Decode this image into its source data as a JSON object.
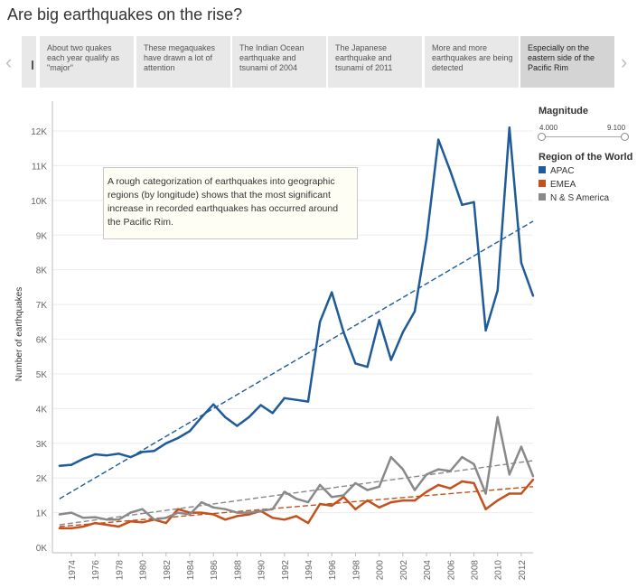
{
  "title": "Are big earthquakes on the rise?",
  "story_points": [
    {
      "label": "About two quakes each year qualify as \"major\""
    },
    {
      "label": "These megaquakes have drawn a lot of attention"
    },
    {
      "label": "The Indian Ocean earthquake and tsunami of 2004"
    },
    {
      "label": "The Japanese earthquake and tsunami of 2011"
    },
    {
      "label": "More and more earthquakes are being detected"
    },
    {
      "label": "Especially on the eastern side of the Pacific Rim"
    }
  ],
  "nav": {
    "prev": "‹",
    "next": "›"
  },
  "annotation": "A rough categorization of earthquakes into geographic regions (by longitude) shows that the most significant increase in recorded earthquakes has occurred around the Pacific Rim.",
  "filter": {
    "title": "Magnitude",
    "min_label": "4.000",
    "max_label": "9.100",
    "min": 4.0,
    "max": 9.1
  },
  "legend": {
    "title": "Region of the World",
    "items": [
      "APAC",
      "EMEA",
      "N & S America"
    ]
  },
  "colors": {
    "APAC": "#1f5b99",
    "EMEA": "#c5501c",
    "NSA": "#898989"
  },
  "chart_data": {
    "type": "line",
    "ylabel": "Number of earthquakes",
    "xlabel": "",
    "ylim": [
      0,
      12000
    ],
    "xlim": [
      1972.4,
      2013
    ],
    "y_ticks": [
      0,
      1000,
      2000,
      3000,
      4000,
      5000,
      6000,
      7000,
      8000,
      9000,
      10000,
      11000,
      12000
    ],
    "y_tick_labels": [
      "0K",
      "1K",
      "2K",
      "3K",
      "4K",
      "5K",
      "6K",
      "7K",
      "8K",
      "9K",
      "10K",
      "11K",
      "12K"
    ],
    "x_ticks": [
      1974,
      1976,
      1978,
      1980,
      1982,
      1984,
      1986,
      1988,
      1990,
      1992,
      1994,
      1996,
      1998,
      2000,
      2002,
      2004,
      2006,
      2008,
      2010,
      2012
    ],
    "x_tick_labels": [
      "1974",
      "1976",
      "1978",
      "1980",
      "1982",
      "1984",
      "1986",
      "1988",
      "1990",
      "1992",
      "1994",
      "1996",
      "1998",
      "2000",
      "2002",
      "2004",
      "2006",
      "2008",
      "2010",
      "2012"
    ],
    "years": [
      1973,
      1974,
      1975,
      1976,
      1977,
      1978,
      1979,
      1980,
      1981,
      1982,
      1983,
      1984,
      1985,
      1986,
      1987,
      1988,
      1989,
      1990,
      1991,
      1992,
      1993,
      1994,
      1995,
      1996,
      1997,
      1998,
      1999,
      2000,
      2001,
      2002,
      2003,
      2004,
      2005,
      2006,
      2007,
      2008,
      2009,
      2010,
      2011,
      2012,
      2013
    ],
    "series": [
      {
        "name": "APAC",
        "color": "#1f5b99",
        "values": [
          2350,
          2380,
          2550,
          2680,
          2650,
          2700,
          2600,
          2750,
          2780,
          3000,
          3150,
          3350,
          3750,
          4120,
          3750,
          3500,
          3750,
          4100,
          3870,
          4300,
          4250,
          4200,
          6500,
          7350,
          6200,
          5300,
          5200,
          6550,
          5400,
          6200,
          6800,
          8900,
          11750,
          10850,
          9870,
          9950,
          6250,
          7400,
          12100,
          8200,
          7250
        ],
        "trend": [
          1400,
          9400
        ]
      },
      {
        "name": "EMEA",
        "color": "#c5501c",
        "values": [
          550,
          550,
          600,
          700,
          650,
          600,
          750,
          720,
          800,
          700,
          1100,
          1000,
          1000,
          950,
          800,
          900,
          950,
          1050,
          850,
          800,
          900,
          700,
          1250,
          1200,
          1450,
          1100,
          1350,
          1150,
          1300,
          1350,
          1350,
          1600,
          1800,
          1700,
          1900,
          1850,
          1100,
          1350,
          1550,
          1550,
          1950
        ],
        "trend": [
          600,
          1750
        ]
      },
      {
        "name": "N & S America",
        "color": "#898989",
        "values": [
          950,
          1000,
          850,
          870,
          800,
          800,
          1000,
          1100,
          800,
          850,
          1000,
          950,
          1300,
          1150,
          1100,
          1000,
          1000,
          1050,
          1100,
          1600,
          1400,
          1300,
          1800,
          1450,
          1500,
          1850,
          1650,
          1750,
          2600,
          2250,
          1650,
          2100,
          2250,
          2200,
          2600,
          2400,
          1550,
          3750,
          2100,
          2900,
          2050
        ],
        "trend": [
          650,
          2500
        ]
      }
    ]
  }
}
